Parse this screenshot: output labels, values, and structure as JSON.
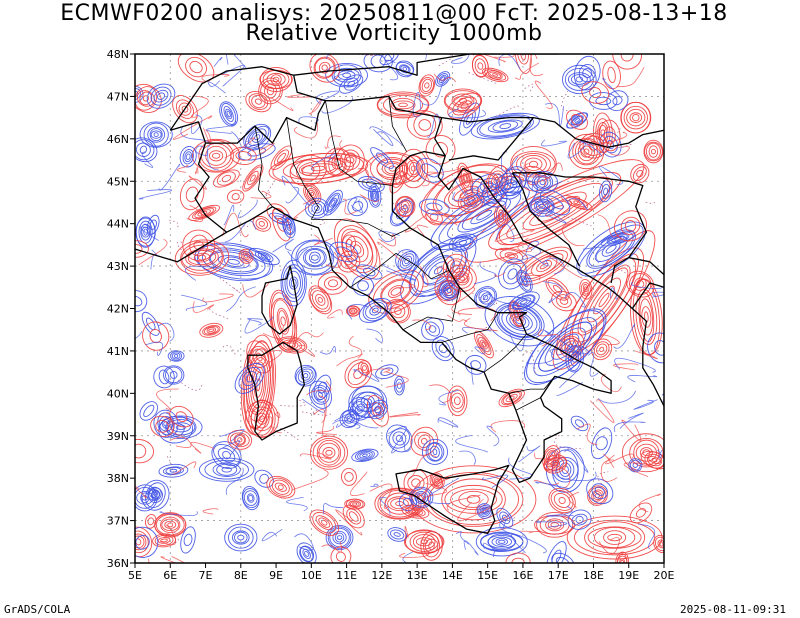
{
  "title": {
    "line1": "ECMWF0200 analisys: 20250811@00 FcT: 2025-08-13+18",
    "line2": "Relative Vorticity 1000mb"
  },
  "map": {
    "lon_range": [
      5,
      20
    ],
    "lat_range": [
      36,
      48
    ],
    "lon_ticks": [
      "5E",
      "6E",
      "7E",
      "8E",
      "9E",
      "10E",
      "11E",
      "12E",
      "13E",
      "14E",
      "15E",
      "16E",
      "17E",
      "18E",
      "19E",
      "20E"
    ],
    "lat_ticks": [
      "36N",
      "37N",
      "38N",
      "39N",
      "40N",
      "41N",
      "42N",
      "43N",
      "44N",
      "45N",
      "46N",
      "47N",
      "48N"
    ],
    "positive_color": "#f03c3c",
    "negative_color": "#3c50e6",
    "gridline_color": "#999999",
    "border_color": "#000000"
  },
  "footer": {
    "left": "GrADS/COLA",
    "right": "2025-08-11-09:31"
  }
}
